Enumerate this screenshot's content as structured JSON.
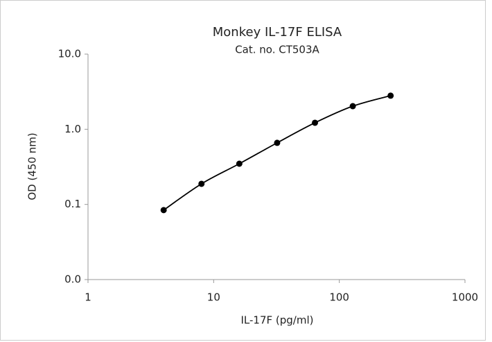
{
  "chart_data": {
    "type": "line",
    "title": "Monkey IL-17F ELISA",
    "subtitle": "Cat. no. CT503A",
    "x_label": "IL-17F (pg/ml)",
    "y_label": "OD (450 nm)",
    "x": [
      4,
      8,
      16,
      32,
      64,
      128,
      256
    ],
    "series": [
      {
        "name": null,
        "color": "#000000",
        "values": [
          0.084,
          0.188,
          0.348,
          0.66,
          1.22,
          2.03,
          2.8
        ]
      }
    ],
    "xscale": "log",
    "yscale": "log",
    "xlim": [
      1,
      1000
    ],
    "xticks": [
      1,
      10,
      100,
      1000
    ],
    "ylim": [
      0.01,
      10
    ],
    "yticks": [
      {
        "value": 0.01,
        "label": "0.0"
      },
      {
        "value": 0.1,
        "label": "0.1"
      },
      {
        "value": 1,
        "label": "1.0"
      },
      {
        "value": 10,
        "label": "10.0"
      }
    ],
    "grid": false
  }
}
